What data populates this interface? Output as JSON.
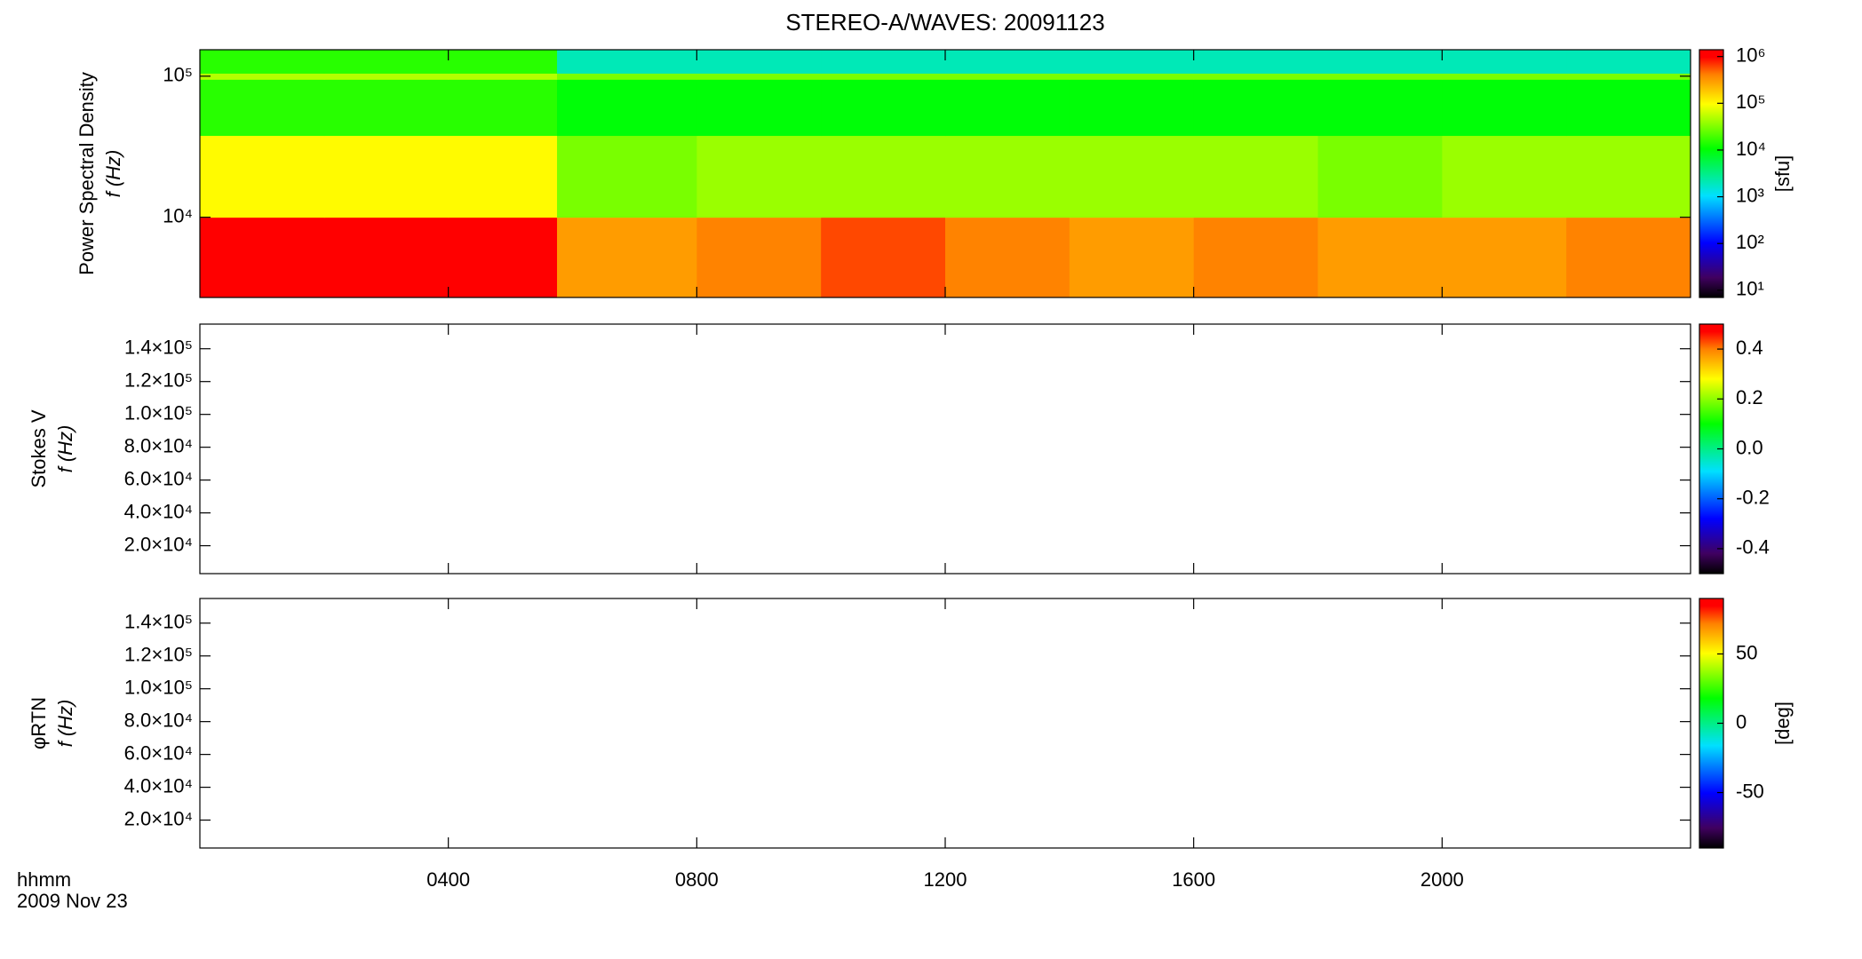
{
  "chart_data": [
    {
      "type": "heatmap",
      "title": "STEREO-A/WAVES: 20091123",
      "ylabel": [
        "Power Spectral Density",
        "f (Hz)"
      ],
      "xlim": [
        0,
        24
      ],
      "ylim": [
        2700,
        154000
      ],
      "ylog": true,
      "yticks": [
        {
          "value": 10000,
          "label": "10⁴"
        },
        {
          "value": 100000,
          "label": "10⁵"
        }
      ],
      "x": [
        0,
        2,
        4,
        5.75,
        8,
        10,
        12,
        14,
        16,
        18,
        20,
        22,
        24
      ],
      "y": [
        2700,
        10000,
        38000,
        95000,
        105000,
        154000
      ],
      "values": [
        [
          1000000,
          1000000,
          1000000,
          300000,
          400000,
          600000,
          400000,
          300000,
          400000,
          300000,
          300000,
          400000
        ],
        [
          100000,
          100000,
          100000,
          30000,
          40000,
          40000,
          40000,
          40000,
          40000,
          30000,
          40000,
          40000
        ],
        [
          15000,
          15000,
          15000,
          10000,
          10000,
          10000,
          10000,
          10000,
          10000,
          10000,
          10000,
          10000
        ],
        [
          50000,
          50000,
          50000,
          30000,
          30000,
          30000,
          30000,
          30000,
          30000,
          30000,
          30000,
          30000
        ],
        [
          15000,
          15000,
          15000,
          2000,
          2000,
          2000,
          2000,
          2000,
          2000,
          2000,
          2000,
          2000
        ]
      ],
      "colorbar": {
        "lim": [
          7,
          1400000
        ],
        "log": true,
        "label": "[sfu]",
        "ticks": [
          {
            "value": 10,
            "label": "10¹"
          },
          {
            "value": 100,
            "label": "10²"
          },
          {
            "value": 1000,
            "label": "10³"
          },
          {
            "value": 10000,
            "label": "10⁴"
          },
          {
            "value": 100000,
            "label": "10⁵"
          },
          {
            "value": 1000000,
            "label": "10⁶"
          }
        ]
      }
    },
    {
      "type": "heatmap",
      "ylabel": [
        "Stokes V",
        "f (Hz)"
      ],
      "xlim": [
        0,
        24
      ],
      "ylim": [
        3000,
        155000
      ],
      "ylog": false,
      "yticks": [
        {
          "value": 20000,
          "label": "2.0×10⁴"
        },
        {
          "value": 40000,
          "label": "4.0×10⁴"
        },
        {
          "value": 60000,
          "label": "6.0×10⁴"
        },
        {
          "value": 80000,
          "label": "8.0×10⁴"
        },
        {
          "value": 100000,
          "label": "1.0×10⁵"
        },
        {
          "value": 120000,
          "label": "1.2×10⁵"
        },
        {
          "value": 140000,
          "label": "1.4×10⁵"
        }
      ],
      "colorbar": {
        "lim": [
          -0.5,
          0.5
        ],
        "log": false,
        "ticks": [
          -0.4,
          -0.2,
          {
            "value": 0,
            "label": "0.0"
          },
          0.2,
          0.4
        ]
      }
    },
    {
      "type": "heatmap",
      "ylabel": [
        "φRTN",
        "f (Hz)"
      ],
      "xlim": [
        0,
        24
      ],
      "ylim": [
        3000,
        155000
      ],
      "ylog": false,
      "yticks": [
        {
          "value": 20000,
          "label": "2.0×10⁴"
        },
        {
          "value": 40000,
          "label": "4.0×10⁴"
        },
        {
          "value": 60000,
          "label": "6.0×10⁴"
        },
        {
          "value": 80000,
          "label": "8.0×10⁴"
        },
        {
          "value": 100000,
          "label": "1.0×10⁵"
        },
        {
          "value": 120000,
          "label": "1.2×10⁵"
        },
        {
          "value": 140000,
          "label": "1.4×10⁵"
        }
      ],
      "xticks": [
        {
          "value": 4,
          "label": "0400"
        },
        {
          "value": 8,
          "label": "0800"
        },
        {
          "value": 12,
          "label": "1200"
        },
        {
          "value": 16,
          "label": "1600"
        },
        {
          "value": 20,
          "label": "2000"
        }
      ],
      "xlabel": "hhmm",
      "xsublabel": "2009 Nov 23",
      "colorbar": {
        "lim": [
          -90,
          90
        ],
        "log": false,
        "label": "[deg]",
        "ticks": [
          -50,
          0,
          50
        ]
      }
    }
  ]
}
